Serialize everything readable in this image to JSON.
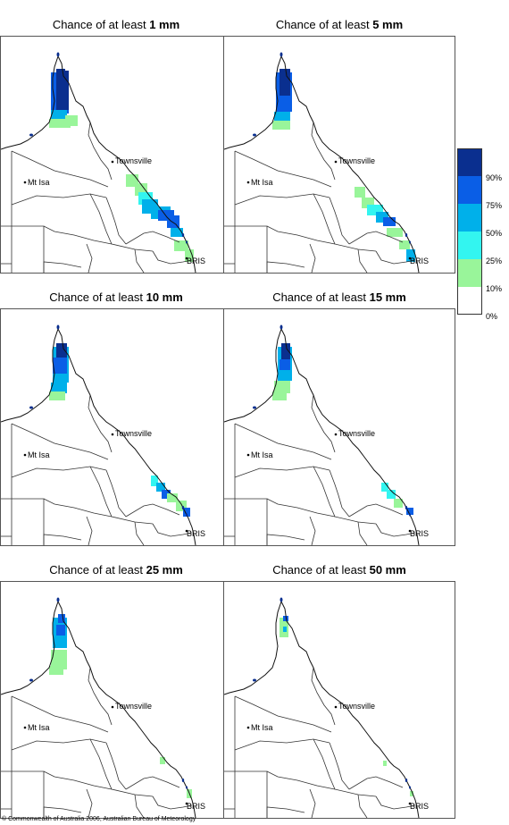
{
  "panels": [
    {
      "prefix": "Chance of at least ",
      "amount": "1 mm",
      "level": 1
    },
    {
      "prefix": "Chance of at least ",
      "amount": "5 mm",
      "level": 2
    },
    {
      "prefix": "Chance of at least ",
      "amount": "10 mm",
      "level": 3
    },
    {
      "prefix": "Chance of at least ",
      "amount": "15 mm",
      "level": 4
    },
    {
      "prefix": "Chance of at least ",
      "amount": "25 mm",
      "level": 5
    },
    {
      "prefix": "Chance of at least ",
      "amount": "50 mm",
      "level": 6
    }
  ],
  "places": {
    "townsville": "Townsville",
    "mt_isa": "Mt Isa",
    "brisbane": "BRIS"
  },
  "legend": {
    "labels": [
      "90%",
      "75%",
      "50%",
      "25%",
      "10%",
      "0%"
    ],
    "colors": [
      "#0a2f8f",
      "#0a5ee6",
      "#00b0ea",
      "#33f5f0",
      "#99f59a",
      "#ffffff"
    ]
  },
  "copyright": "© Commonwealth of Australia 2006, Australian Bureau of Meteorology"
}
